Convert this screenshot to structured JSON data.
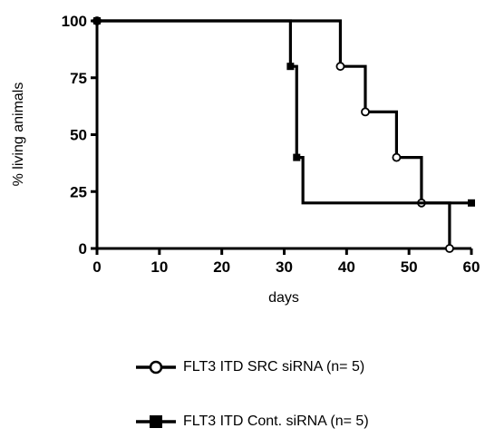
{
  "chart_data": {
    "type": "line",
    "step": true,
    "xlabel": "days",
    "ylabel": "% living animals",
    "xlim": [
      0,
      60
    ],
    "ylim": [
      0,
      100
    ],
    "xticks": [
      0,
      10,
      20,
      30,
      40,
      50,
      60
    ],
    "yticks": [
      0,
      25,
      50,
      75,
      100
    ],
    "grid": false,
    "legend_placement": "bottom",
    "series": [
      {
        "name": "FLT3 ITD SRC siRNA (n= 5)",
        "marker": "open-circle",
        "color": "#000000",
        "steps": [
          [
            0,
            100
          ],
          [
            39,
            80
          ],
          [
            43,
            60
          ],
          [
            48,
            40
          ],
          [
            52,
            20
          ],
          [
            56.5,
            0
          ]
        ],
        "points": [
          [
            0,
            100
          ],
          [
            39,
            80
          ],
          [
            43,
            60
          ],
          [
            48,
            40
          ],
          [
            52,
            20
          ],
          [
            56.5,
            0
          ]
        ]
      },
      {
        "name": "FLT3 ITD  Cont. siRNA (n= 5)",
        "marker": "filled-square",
        "color": "#000000",
        "steps": [
          [
            0,
            100
          ],
          [
            31,
            80
          ],
          [
            32,
            40
          ],
          [
            33,
            20
          ],
          [
            60,
            20
          ]
        ],
        "points": [
          [
            0,
            100
          ],
          [
            31,
            80
          ],
          [
            32,
            40
          ],
          [
            60,
            20
          ]
        ]
      }
    ]
  }
}
